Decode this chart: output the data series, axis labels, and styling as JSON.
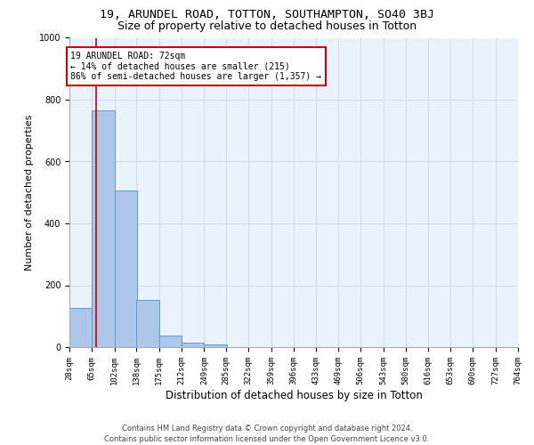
{
  "title": "19, ARUNDEL ROAD, TOTTON, SOUTHAMPTON, SO40 3BJ",
  "subtitle": "Size of property relative to detached houses in Totton",
  "xlabel": "Distribution of detached houses by size in Totton",
  "ylabel": "Number of detached properties",
  "bar_edges": [
    28,
    65,
    102,
    138,
    175,
    212,
    249,
    285,
    322,
    359,
    396,
    433,
    469,
    506,
    543,
    580,
    616,
    653,
    690,
    727,
    764
  ],
  "bar_values": [
    128,
    765,
    507,
    152,
    37,
    15,
    9,
    0,
    0,
    0,
    0,
    0,
    0,
    0,
    0,
    0,
    0,
    0,
    0,
    0
  ],
  "bar_color": "#aec6e8",
  "bar_edge_color": "#5b9bd5",
  "grid_color": "#c8d8ea",
  "bg_color": "#eaf2fb",
  "property_size": 72,
  "property_label": "19 ARUNDEL ROAD: 72sqm",
  "annotation_line1": "← 14% of detached houses are smaller (215)",
  "annotation_line2": "86% of semi-detached houses are larger (1,357) →",
  "vline_color": "#cc0000",
  "annotation_box_color": "#cc0000",
  "ylim": [
    0,
    1000
  ],
  "tick_labels": [
    "28sqm",
    "65sqm",
    "102sqm",
    "138sqm",
    "175sqm",
    "212sqm",
    "249sqm",
    "285sqm",
    "322sqm",
    "359sqm",
    "396sqm",
    "433sqm",
    "469sqm",
    "506sqm",
    "543sqm",
    "580sqm",
    "616sqm",
    "653sqm",
    "690sqm",
    "727sqm",
    "764sqm"
  ],
  "footer_line1": "Contains HM Land Registry data © Crown copyright and database right 2024.",
  "footer_line2": "Contains public sector information licensed under the Open Government Licence v3.0.",
  "title_fontsize": 9.5,
  "subtitle_fontsize": 9,
  "xlabel_fontsize": 8.5,
  "ylabel_fontsize": 8,
  "tick_fontsize": 6.5,
  "footer_fontsize": 6,
  "annot_fontsize": 7
}
